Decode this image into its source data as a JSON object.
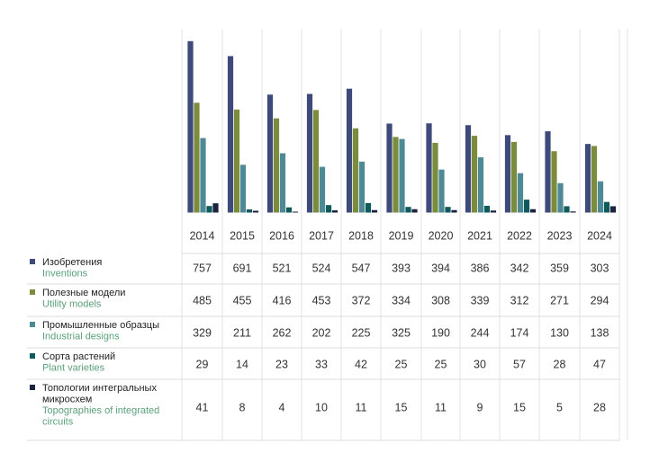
{
  "chart_data": {
    "type": "bar",
    "categories": [
      "2014",
      "2015",
      "2016",
      "2017",
      "2018",
      "2019",
      "2020",
      "2021",
      "2022",
      "2023",
      "2024"
    ],
    "series": [
      {
        "name": "Изобретения",
        "name_en": "Inventions",
        "color": "#3d4a7a",
        "values": [
          757,
          691,
          521,
          524,
          547,
          393,
          394,
          386,
          342,
          359,
          303
        ]
      },
      {
        "name": "Полезные модели",
        "name_en": "Utility models",
        "color": "#7b8c3c",
        "values": [
          485,
          455,
          416,
          453,
          372,
          334,
          308,
          339,
          312,
          271,
          294
        ]
      },
      {
        "name": "Промышленные образцы",
        "name_en": "Industrial designs",
        "color": "#4e8a95",
        "values": [
          329,
          211,
          262,
          202,
          225,
          325,
          190,
          244,
          174,
          130,
          138
        ]
      },
      {
        "name": "Сорта растений",
        "name_en": "Plant varieties",
        "color": "#0f5a5a",
        "values": [
          29,
          14,
          23,
          33,
          42,
          25,
          25,
          30,
          57,
          28,
          47
        ]
      },
      {
        "name": "Топологии интегральных микросхем",
        "name_en": "Topographies of integrated circuits",
        "color": "#1c2340",
        "values": [
          41,
          8,
          4,
          10,
          11,
          15,
          11,
          9,
          15,
          5,
          28
        ]
      }
    ],
    "ylim": [
      0,
      780
    ],
    "legend": "table-left",
    "grid": "vertical-lines"
  }
}
